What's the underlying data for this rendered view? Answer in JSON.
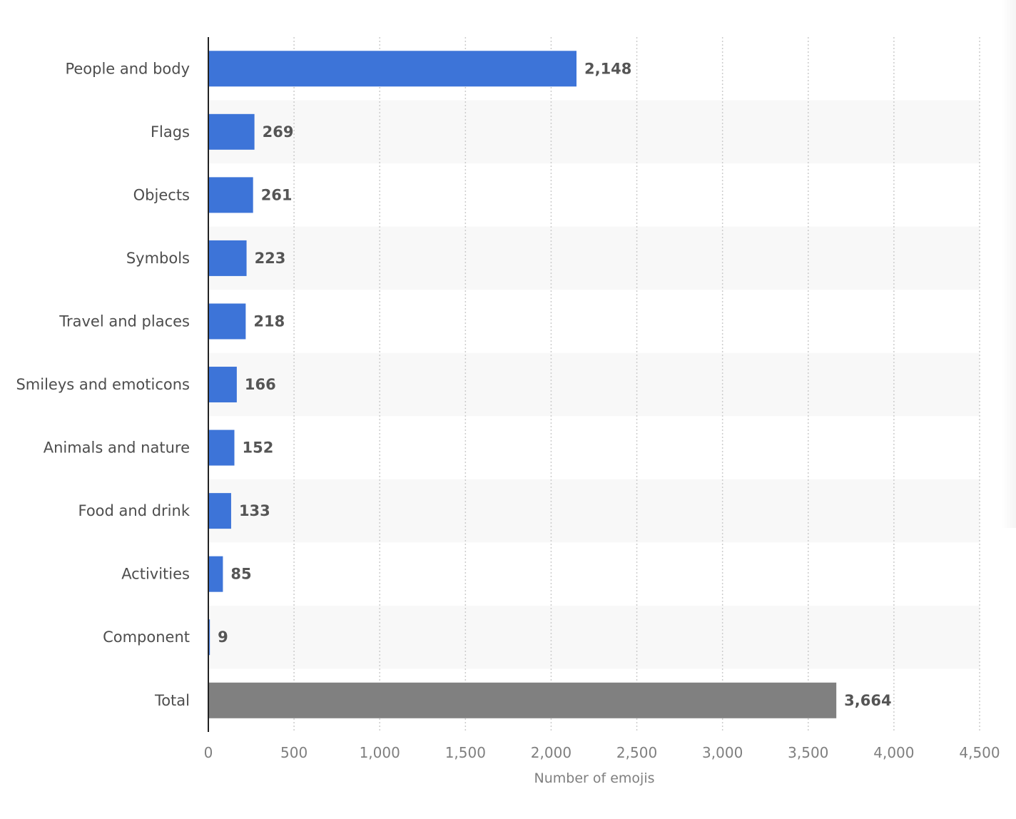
{
  "chart_data": {
    "type": "bar",
    "orientation": "horizontal",
    "title": "",
    "categories": [
      "People and body",
      "Flags",
      "Objects",
      "Symbols",
      "Travel and places",
      "Smileys and emoticons",
      "Animals and nature",
      "Food and drink",
      "Activities",
      "Component",
      "Total"
    ],
    "values": [
      2148,
      269,
      261,
      223,
      218,
      166,
      152,
      133,
      85,
      9,
      3664
    ],
    "value_labels": [
      "2,148",
      "269",
      "261",
      "223",
      "218",
      "166",
      "152",
      "133",
      "85",
      "9",
      "3,664"
    ],
    "xlabel": "Number of emojis",
    "ylabel": "",
    "xlim": [
      0,
      4500
    ],
    "xticks": [
      0,
      500,
      1000,
      1500,
      2000,
      2500,
      3000,
      3500,
      4000,
      4500
    ],
    "xtick_labels": [
      "0",
      "500",
      "1,000",
      "1,500",
      "2,000",
      "2,500",
      "3,000",
      "3,500",
      "4,000",
      "4,500"
    ],
    "grid": "vertical-dotted",
    "colors": {
      "bar": "#3d74d8",
      "total_bar": "#808080",
      "band": "#f8f8f8",
      "grid": "#cccccc",
      "axis": "#222222"
    }
  }
}
